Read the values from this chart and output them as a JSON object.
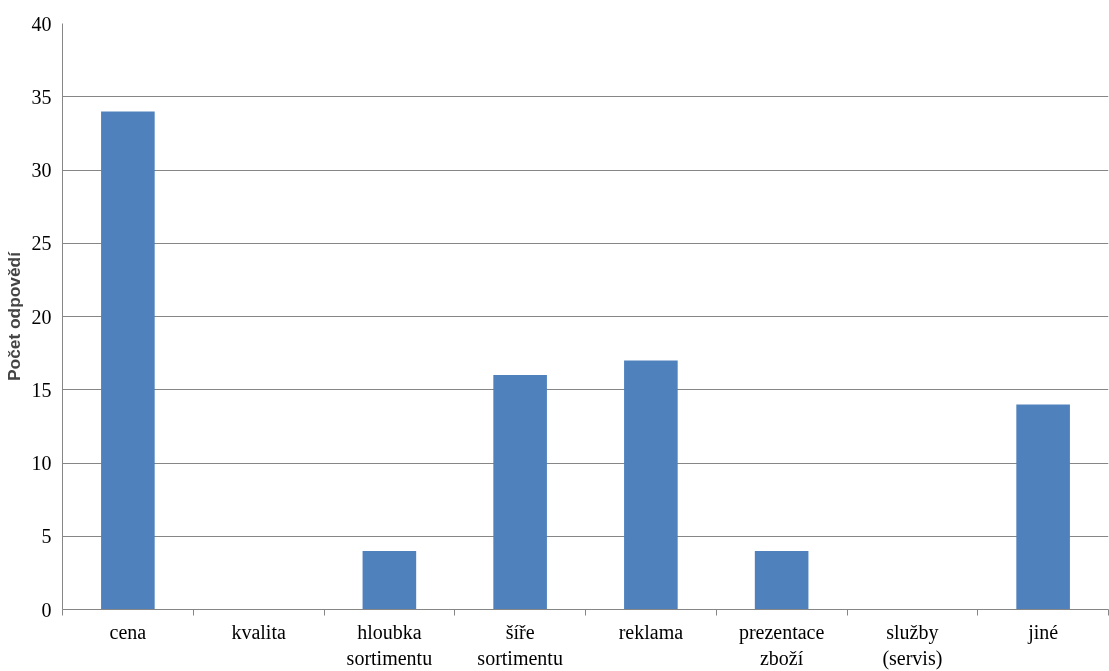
{
  "chart_data": {
    "type": "bar",
    "ylabel": "Počet odpovědí",
    "categories": [
      "cena",
      "kvalita",
      "hloubka sortimentu",
      "šíře sortimentu",
      "reklama",
      "prezentace zboží",
      "služby (servis)",
      "jiné"
    ],
    "values": [
      34,
      0,
      4,
      16,
      17,
      4,
      0,
      14
    ],
    "color": "#4f81bd",
    "ylim": [
      0,
      40
    ],
    "yticks": [
      0,
      5,
      10,
      15,
      20,
      25,
      30,
      35,
      40
    ],
    "grid": "y"
  }
}
